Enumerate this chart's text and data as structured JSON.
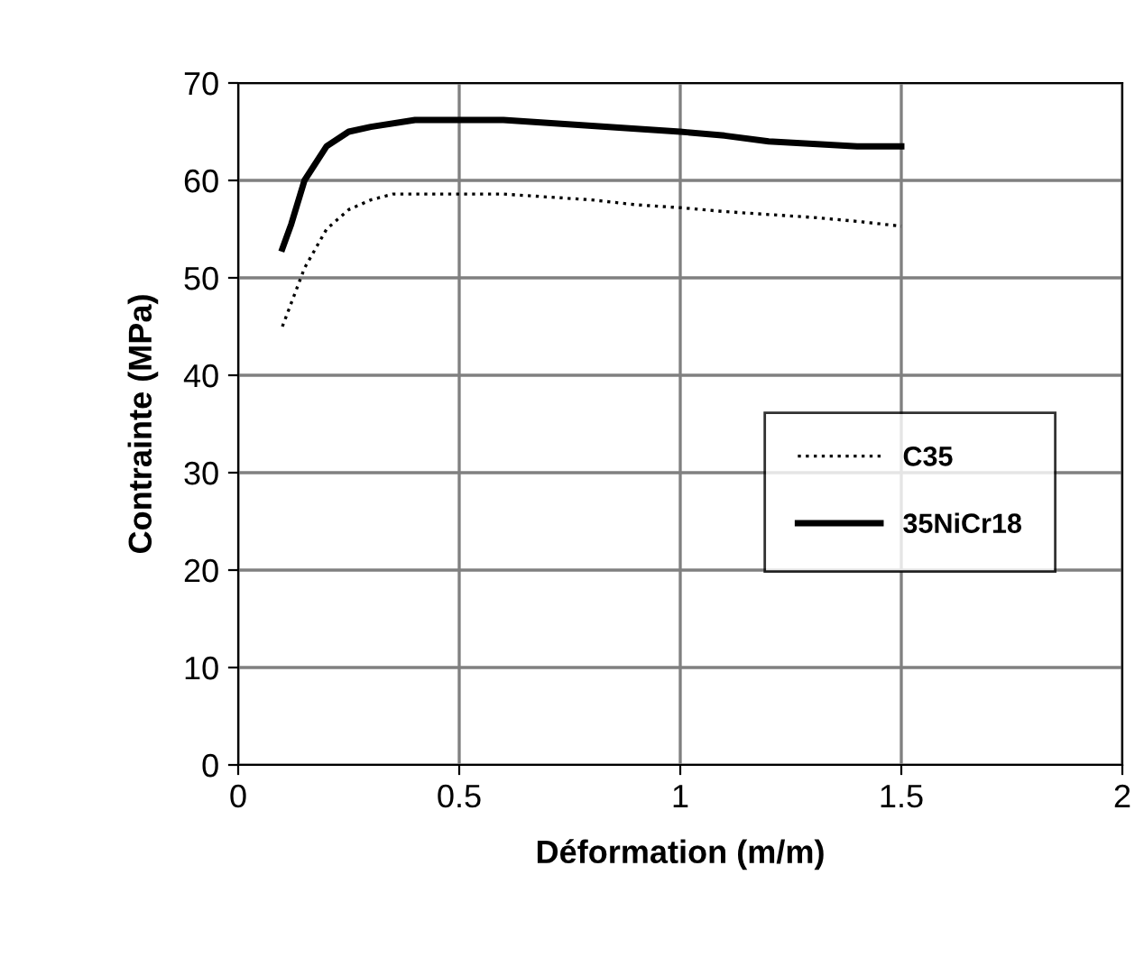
{
  "chart_data": {
    "type": "line",
    "xlabel": "Déformation (m/m)",
    "ylabel": "Contrainte (MPa)",
    "xlim": [
      0,
      2
    ],
    "xticks": [
      0,
      0.5,
      1,
      1.5,
      2
    ],
    "ylim": [
      0,
      70
    ],
    "yticks": [
      0,
      10,
      20,
      30,
      40,
      50,
      60,
      70
    ],
    "grid": true,
    "legend": "right",
    "marker": "none",
    "series": [
      {
        "name": "C35",
        "color": "#000000",
        "line_style": "dotted",
        "x": [
          0.1,
          0.15,
          0.2,
          0.25,
          0.3,
          0.35,
          0.6,
          0.7,
          0.8,
          0.9,
          1.0,
          1.1,
          1.2,
          1.3,
          1.4,
          1.5
        ],
        "values": [
          45,
          51,
          55,
          57,
          58,
          58.6,
          58.6,
          58.3,
          58,
          57.5,
          57.2,
          56.8,
          56.5,
          56.2,
          55.8,
          55.3
        ]
      },
      {
        "name": "35NiCr18",
        "color": "#000000",
        "line_style": "solid",
        "x": [
          0.1,
          0.12,
          0.15,
          0.2,
          0.25,
          0.3,
          0.4,
          0.6,
          0.8,
          1.0,
          1.1,
          1.2,
          1.4,
          1.5
        ],
        "values": [
          53,
          55.5,
          60,
          63.5,
          65,
          65.5,
          66.2,
          66.2,
          65.6,
          65,
          64.6,
          64,
          63.5,
          63.5
        ]
      }
    ]
  }
}
